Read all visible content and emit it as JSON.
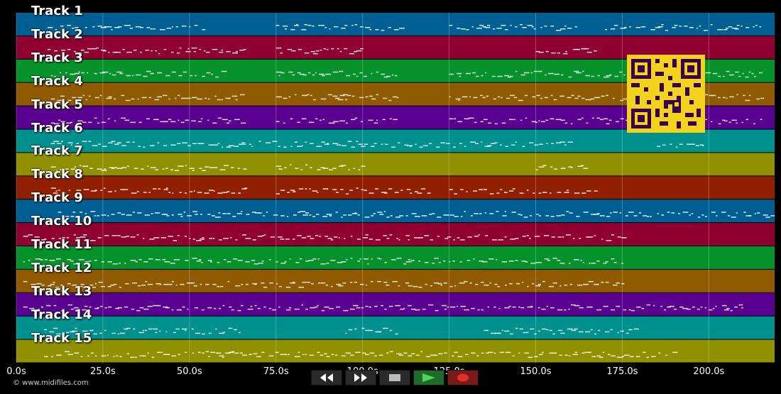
{
  "tracks": [
    {
      "label": "Track 1",
      "color": "#005f92"
    },
    {
      "label": "Track 2",
      "color": "#8f0030"
    },
    {
      "label": "Track 3",
      "color": "#06922a"
    },
    {
      "label": "Track 4",
      "color": "#905a00"
    },
    {
      "label": "Track 5",
      "color": "#5a0090"
    },
    {
      "label": "Track 6",
      "color": "#00908e"
    },
    {
      "label": "Track 7",
      "color": "#909000"
    },
    {
      "label": "Track 8",
      "color": "#902000"
    },
    {
      "label": "Track 9",
      "color": "#005f92"
    },
    {
      "label": "Track 10",
      "color": "#8f0030"
    },
    {
      "label": "Track 11",
      "color": "#06922a"
    },
    {
      "label": "Track 12",
      "color": "#905a00"
    },
    {
      "label": "Track 13",
      "color": "#5a0090"
    },
    {
      "label": "Track 14",
      "color": "#00908e"
    },
    {
      "label": "Track 15",
      "color": "#909000"
    }
  ],
  "timeline": {
    "ticks": [
      "0.0s",
      "25.0s",
      "50.0s",
      "75.0s",
      "100.0s",
      "125.0s",
      "150.0s",
      "175.0s",
      "200.0s"
    ],
    "tick_values": [
      0,
      25,
      50,
      75,
      100,
      125,
      150,
      175,
      200
    ],
    "max_seconds": 219
  },
  "footer": {
    "copyright": "© www.midifiles.com"
  },
  "controls": {
    "rewind_icon": "rewind-icon",
    "fast_forward_icon": "fast-forward-icon",
    "stop_icon": "stop-icon",
    "play_icon": "play-icon",
    "record_icon": "record-icon"
  },
  "qr_code": {
    "icon": "qr-code",
    "color": "#f3d31a"
  }
}
